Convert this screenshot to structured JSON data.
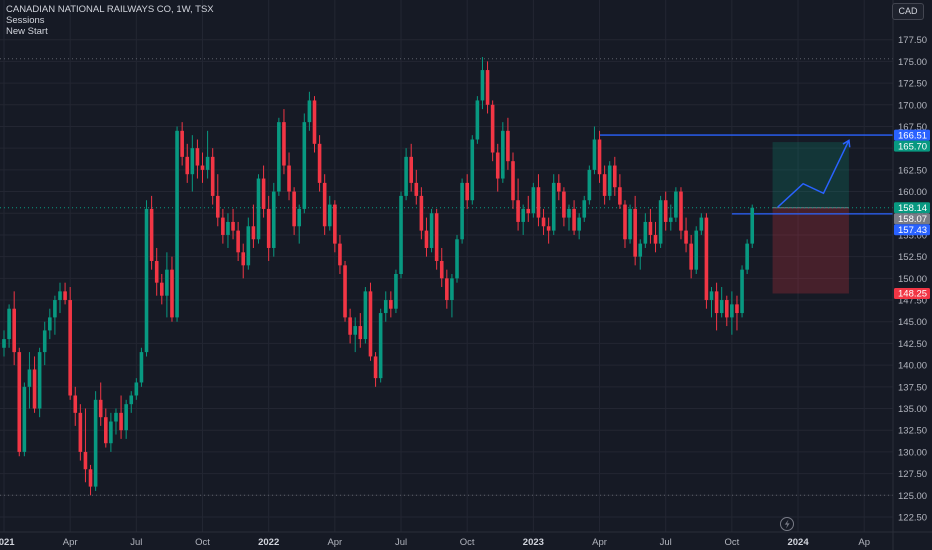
{
  "legend": {
    "symbol": "CANADIAN NATIONAL RAILWAYS CO, 1W, TSX",
    "sessions": "Sessions",
    "new_start": "New Start"
  },
  "currency": "CAD",
  "chart_data": {
    "type": "candlestick",
    "x_axis_labels": [
      {
        "label": "2021",
        "bold": true
      },
      {
        "label": "Apr",
        "bold": false
      },
      {
        "label": "Jul",
        "bold": false
      },
      {
        "label": "Oct",
        "bold": false
      },
      {
        "label": "2022",
        "bold": true
      },
      {
        "label": "Apr",
        "bold": false
      },
      {
        "label": "Jul",
        "bold": false
      },
      {
        "label": "Oct",
        "bold": false
      },
      {
        "label": "2023",
        "bold": true
      },
      {
        "label": "Apr",
        "bold": false
      },
      {
        "label": "Jul",
        "bold": false
      },
      {
        "label": "Oct",
        "bold": false
      },
      {
        "label": "2024",
        "bold": true
      },
      {
        "label": "Ap",
        "bold": false
      }
    ],
    "x_axis_label_weeks": [
      0,
      13,
      26,
      39,
      52,
      65,
      78,
      91,
      104,
      117,
      130,
      143,
      156,
      169
    ],
    "y_ticks": [
      122.5,
      125.0,
      127.5,
      130.0,
      132.5,
      135.0,
      137.5,
      140.0,
      142.5,
      145.0,
      147.5,
      150.0,
      152.5,
      155.0,
      157.5,
      160.0,
      162.5,
      165.0,
      167.5,
      170.0,
      172.5,
      175.0,
      177.5
    ],
    "y_tick_labels": [
      "122.50",
      "125.00",
      "127.50",
      "130.00",
      "132.50",
      "135.00",
      "137.50",
      "140.00",
      "142.50",
      "145.00",
      "147.50",
      "150.00",
      "152.50",
      "155.00",
      "157.50",
      "160.00",
      "162.50",
      "165.00",
      "167.50",
      "170.00",
      "172.50",
      "175.00",
      "177.50"
    ],
    "y_range": [
      121.0,
      180.0
    ],
    "price_tags": [
      {
        "label": "166.51",
        "value": 166.51,
        "color": "#2962ff"
      },
      {
        "label": "165.70",
        "value": 165.7,
        "color": "#089981"
      },
      {
        "label": "158.14",
        "value": 158.14,
        "color": "#089981"
      },
      {
        "label": "158.07",
        "value": 158.07,
        "color": "#787b86"
      },
      {
        "label": "157.43",
        "value": 157.43,
        "color": "#2962ff"
      },
      {
        "label": "148.25",
        "value": 148.25,
        "color": "#f23645"
      }
    ],
    "horizontal_lines": [
      {
        "value": 166.51,
        "start_week": 117,
        "color": "#2962ff"
      },
      {
        "value": 157.43,
        "start_week": 143,
        "color": "#2962ff"
      }
    ],
    "dotted_lines": [
      {
        "value": 175.3,
        "color": "#5d606b"
      },
      {
        "value": 125.0,
        "color": "#5d606b"
      },
      {
        "value": 158.14,
        "color": "#089981"
      }
    ],
    "position": {
      "start_week": 151,
      "end_week": 166,
      "entry": 158.14,
      "target": 165.7,
      "stop": 148.25,
      "profit_color": "rgba(8,153,129,0.22)",
      "loss_color": "rgba(242,54,69,0.22)"
    },
    "projection_path": [
      [
        152,
        158.2
      ],
      [
        157,
        160.9
      ],
      [
        161,
        159.8
      ],
      [
        166,
        165.9
      ]
    ],
    "colors": {
      "up": "#089981",
      "down": "#f23645",
      "grid": "#232632",
      "axis_text": "#b2b5be"
    },
    "candles": [
      [
        142.0,
        144.0,
        141.0,
        143.0
      ],
      [
        143.0,
        147.0,
        142.0,
        146.5
      ],
      [
        146.5,
        148.5,
        140.0,
        141.5
      ],
      [
        141.5,
        142.0,
        129.5,
        130.0
      ],
      [
        130.0,
        138.0,
        129.5,
        137.5
      ],
      [
        137.5,
        141.5,
        135.0,
        139.5
      ],
      [
        139.5,
        141.0,
        134.5,
        135.0
      ],
      [
        135.0,
        142.0,
        134.0,
        141.5
      ],
      [
        141.5,
        145.0,
        140.0,
        144.0
      ],
      [
        144.0,
        146.5,
        143.0,
        145.5
      ],
      [
        145.5,
        148.0,
        143.5,
        147.5
      ],
      [
        147.5,
        149.5,
        146.0,
        148.5
      ],
      [
        148.5,
        149.5,
        147.0,
        147.5
      ],
      [
        147.5,
        149.0,
        136.0,
        136.5
      ],
      [
        136.5,
        137.5,
        133.0,
        134.5
      ],
      [
        134.5,
        135.5,
        129.0,
        130.0
      ],
      [
        130.0,
        135.0,
        126.5,
        128.0
      ],
      [
        128.0,
        128.5,
        125.0,
        126.0
      ],
      [
        126.0,
        137.0,
        125.5,
        136.0
      ],
      [
        136.0,
        138.0,
        133.0,
        134.0
      ],
      [
        134.0,
        135.0,
        130.5,
        131.0
      ],
      [
        131.0,
        134.5,
        130.0,
        133.5
      ],
      [
        133.5,
        135.0,
        132.0,
        134.5
      ],
      [
        134.5,
        136.5,
        131.5,
        132.5
      ],
      [
        132.5,
        136.0,
        131.5,
        135.5
      ],
      [
        135.5,
        137.0,
        134.5,
        136.5
      ],
      [
        136.5,
        138.5,
        136.0,
        138.0
      ],
      [
        138.0,
        142.0,
        137.5,
        141.5
      ],
      [
        141.5,
        159.0,
        141.0,
        158.0
      ],
      [
        158.0,
        159.5,
        151.0,
        152.0
      ],
      [
        152.0,
        153.5,
        148.0,
        149.5
      ],
      [
        149.5,
        150.5,
        147.0,
        148.0
      ],
      [
        148.0,
        153.0,
        145.5,
        151.0
      ],
      [
        151.0,
        152.5,
        145.0,
        145.5
      ],
      [
        145.5,
        167.5,
        145.0,
        167.0
      ],
      [
        167.0,
        168.0,
        163.0,
        164.0
      ],
      [
        164.0,
        165.5,
        161.0,
        162.0
      ],
      [
        162.0,
        166.5,
        160.0,
        165.0
      ],
      [
        165.0,
        166.0,
        161.5,
        163.0
      ],
      [
        163.0,
        164.5,
        161.0,
        162.5
      ],
      [
        162.5,
        167.0,
        161.5,
        164.0
      ],
      [
        164.0,
        165.0,
        158.5,
        159.5
      ],
      [
        159.5,
        162.0,
        156.0,
        157.0
      ],
      [
        157.0,
        158.0,
        154.0,
        155.0
      ],
      [
        155.0,
        157.5,
        153.5,
        156.5
      ],
      [
        156.5,
        158.0,
        154.5,
        155.5
      ],
      [
        155.5,
        156.5,
        152.0,
        153.0
      ],
      [
        153.0,
        154.0,
        150.0,
        151.5
      ],
      [
        151.5,
        157.0,
        151.0,
        156.0
      ],
      [
        156.0,
        158.5,
        153.5,
        154.5
      ],
      [
        154.5,
        162.0,
        154.0,
        161.5
      ],
      [
        161.5,
        163.0,
        157.0,
        158.0
      ],
      [
        158.0,
        159.5,
        152.0,
        153.5
      ],
      [
        153.5,
        161.0,
        152.5,
        160.0
      ],
      [
        160.0,
        168.5,
        159.5,
        168.0
      ],
      [
        168.0,
        169.5,
        162.0,
        163.0
      ],
      [
        163.0,
        164.5,
        159.0,
        160.0
      ],
      [
        160.0,
        160.5,
        155.0,
        156.0
      ],
      [
        156.0,
        158.5,
        154.0,
        158.0
      ],
      [
        158.0,
        169.0,
        157.5,
        168.0
      ],
      [
        168.0,
        171.5,
        167.0,
        170.5
      ],
      [
        170.5,
        171.0,
        164.5,
        165.5
      ],
      [
        165.5,
        166.5,
        160.0,
        161.0
      ],
      [
        161.0,
        162.0,
        155.0,
        156.0
      ],
      [
        156.0,
        159.5,
        155.5,
        158.5
      ],
      [
        158.5,
        159.0,
        153.0,
        154.0
      ],
      [
        154.0,
        155.0,
        150.5,
        151.5
      ],
      [
        151.5,
        152.0,
        145.0,
        145.5
      ],
      [
        145.5,
        146.5,
        142.5,
        143.5
      ],
      [
        143.5,
        145.5,
        141.5,
        144.5
      ],
      [
        144.5,
        146.0,
        142.0,
        143.0
      ],
      [
        143.0,
        149.0,
        142.5,
        148.5
      ],
      [
        148.5,
        149.5,
        140.5,
        141.0
      ],
      [
        141.0,
        141.5,
        137.5,
        138.5
      ],
      [
        138.5,
        146.5,
        138.0,
        146.0
      ],
      [
        146.0,
        148.5,
        145.0,
        147.5
      ],
      [
        147.5,
        148.5,
        145.5,
        146.5
      ],
      [
        146.5,
        151.0,
        146.0,
        150.5
      ],
      [
        150.5,
        160.0,
        150.0,
        159.5
      ],
      [
        159.5,
        165.0,
        159.0,
        164.0
      ],
      [
        164.0,
        165.5,
        160.0,
        161.0
      ],
      [
        161.0,
        162.5,
        158.5,
        159.5
      ],
      [
        159.5,
        160.5,
        154.5,
        155.5
      ],
      [
        155.5,
        157.0,
        152.5,
        153.5
      ],
      [
        153.5,
        158.0,
        153.0,
        157.5
      ],
      [
        157.5,
        158.0,
        151.0,
        152.0
      ],
      [
        152.0,
        153.5,
        149.0,
        150.0
      ],
      [
        150.0,
        151.0,
        146.5,
        147.5
      ],
      [
        147.5,
        150.5,
        145.5,
        150.0
      ],
      [
        150.0,
        155.0,
        149.5,
        154.5
      ],
      [
        154.5,
        161.5,
        154.0,
        161.0
      ],
      [
        161.0,
        162.0,
        158.0,
        159.0
      ],
      [
        159.0,
        166.5,
        158.5,
        166.0
      ],
      [
        166.0,
        171.0,
        165.5,
        170.5
      ],
      [
        170.5,
        175.5,
        169.5,
        174.0
      ],
      [
        174.0,
        175.0,
        169.0,
        170.0
      ],
      [
        170.0,
        170.5,
        163.5,
        164.5
      ],
      [
        164.5,
        165.5,
        160.0,
        161.5
      ],
      [
        161.5,
        168.0,
        161.0,
        167.0
      ],
      [
        167.0,
        168.5,
        162.5,
        163.5
      ],
      [
        163.5,
        164.5,
        158.0,
        159.0
      ],
      [
        159.0,
        161.5,
        155.5,
        156.5
      ],
      [
        156.5,
        158.5,
        155.0,
        158.0
      ],
      [
        158.0,
        159.5,
        156.5,
        157.5
      ],
      [
        157.5,
        161.0,
        157.0,
        160.5
      ],
      [
        160.5,
        162.0,
        156.0,
        157.0
      ],
      [
        157.0,
        158.0,
        155.0,
        156.0
      ],
      [
        156.0,
        157.0,
        154.0,
        155.5
      ],
      [
        155.5,
        162.0,
        155.0,
        161.0
      ],
      [
        161.0,
        162.0,
        159.0,
        160.0
      ],
      [
        160.0,
        160.5,
        156.0,
        157.0
      ],
      [
        157.0,
        158.5,
        155.5,
        158.0
      ],
      [
        158.0,
        159.0,
        155.0,
        155.5
      ],
      [
        155.5,
        157.5,
        154.5,
        157.0
      ],
      [
        157.0,
        159.5,
        156.5,
        159.0
      ],
      [
        159.0,
        163.0,
        158.5,
        162.5
      ],
      [
        162.5,
        167.5,
        162.0,
        166.0
      ],
      [
        166.0,
        167.0,
        161.0,
        162.0
      ],
      [
        162.0,
        163.0,
        158.5,
        159.5
      ],
      [
        159.5,
        163.5,
        159.0,
        163.0
      ],
      [
        163.0,
        164.0,
        159.5,
        160.5
      ],
      [
        160.5,
        162.0,
        158.0,
        158.5
      ],
      [
        158.5,
        159.0,
        153.5,
        154.5
      ],
      [
        154.5,
        158.5,
        154.0,
        158.0
      ],
      [
        158.0,
        159.5,
        151.5,
        152.5
      ],
      [
        152.5,
        154.5,
        151.0,
        154.0
      ],
      [
        154.0,
        157.5,
        153.5,
        156.5
      ],
      [
        156.5,
        158.0,
        154.0,
        155.0
      ],
      [
        155.0,
        156.5,
        153.0,
        154.0
      ],
      [
        154.0,
        159.5,
        153.5,
        159.0
      ],
      [
        159.0,
        160.0,
        155.5,
        156.5
      ],
      [
        156.5,
        158.5,
        155.5,
        157.0
      ],
      [
        157.0,
        160.5,
        156.5,
        160.0
      ],
      [
        160.0,
        160.5,
        154.5,
        155.5
      ],
      [
        155.5,
        157.0,
        153.0,
        154.0
      ],
      [
        154.0,
        155.0,
        150.0,
        151.0
      ],
      [
        151.0,
        156.0,
        150.5,
        155.5
      ],
      [
        155.5,
        157.5,
        155.0,
        157.0
      ],
      [
        157.0,
        157.5,
        146.5,
        147.5
      ],
      [
        147.5,
        149.0,
        145.5,
        148.5
      ],
      [
        148.5,
        149.5,
        144.0,
        146.0
      ],
      [
        146.0,
        149.0,
        145.5,
        147.5
      ],
      [
        147.5,
        148.0,
        144.5,
        145.5
      ],
      [
        145.5,
        148.5,
        143.5,
        147.0
      ],
      [
        147.0,
        148.0,
        144.0,
        146.0
      ],
      [
        146.0,
        151.5,
        145.5,
        151.0
      ],
      [
        151.0,
        154.5,
        150.5,
        154.0
      ],
      [
        154.0,
        158.5,
        153.5,
        158.14
      ]
    ]
  }
}
